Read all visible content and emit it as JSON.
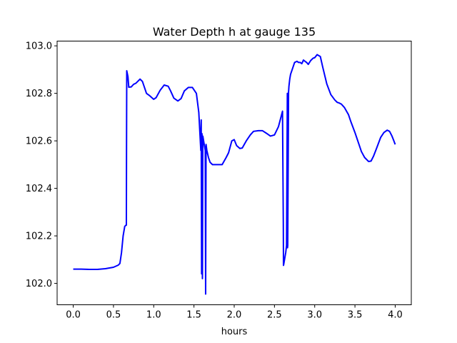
{
  "chart_data": {
    "type": "line",
    "title": "Water Depth h at gauge 135",
    "xlabel": "hours",
    "ylabel": "",
    "xlim": [
      -0.2,
      4.2
    ],
    "ylim": [
      101.91,
      103.02
    ],
    "x_ticks": [
      0.0,
      0.5,
      1.0,
      1.5,
      2.0,
      2.5,
      3.0,
      3.5,
      4.0
    ],
    "x_tick_labels": [
      "0.0",
      "0.5",
      "1.0",
      "1.5",
      "2.0",
      "2.5",
      "3.0",
      "3.5",
      "4.0"
    ],
    "y_ticks": [
      102.0,
      102.2,
      102.4,
      102.6,
      102.8,
      103.0
    ],
    "y_tick_labels": [
      "102.0",
      "102.2",
      "102.4",
      "102.6",
      "102.8",
      "103.0"
    ],
    "grid": false,
    "colors": {
      "line": "#0000ff"
    },
    "series": [
      {
        "x": [
          0.0,
          0.1,
          0.2,
          0.3,
          0.4,
          0.5,
          0.56,
          0.58,
          0.6,
          0.62,
          0.64,
          0.655,
          0.66,
          0.662,
          0.665,
          0.68,
          0.69,
          0.72,
          0.75,
          0.78,
          0.83,
          0.86,
          0.88,
          0.91,
          0.95,
          1.0,
          1.03,
          1.08,
          1.13,
          1.18,
          1.21,
          1.25,
          1.3,
          1.34,
          1.38,
          1.43,
          1.48,
          1.53,
          1.56,
          1.585,
          1.59,
          1.595,
          1.6,
          1.605,
          1.61,
          1.62,
          1.63,
          1.64,
          1.645,
          1.65,
          1.66,
          1.68,
          1.7,
          1.73,
          1.77,
          1.81,
          1.85,
          1.9,
          1.93,
          1.97,
          2.0,
          2.03,
          2.07,
          2.1,
          2.15,
          2.2,
          2.24,
          2.3,
          2.35,
          2.4,
          2.45,
          2.5,
          2.55,
          2.6,
          2.61,
          2.612,
          2.615,
          2.64,
          2.65,
          2.66,
          2.662,
          2.665,
          2.675,
          2.68,
          2.69,
          2.7,
          2.72,
          2.75,
          2.78,
          2.8,
          2.82,
          2.84,
          2.86,
          2.88,
          2.9,
          2.92,
          2.95,
          2.98,
          3.0,
          3.03,
          3.07,
          3.1,
          3.15,
          3.2,
          3.25,
          3.28,
          3.3,
          3.33,
          3.37,
          3.42,
          3.45,
          3.5,
          3.55,
          3.58,
          3.62,
          3.67,
          3.7,
          3.73,
          3.77,
          3.82,
          3.86,
          3.9,
          3.93,
          3.96,
          3.98,
          4.0
        ],
        "y": [
          102.06,
          102.06,
          102.059,
          102.059,
          102.062,
          102.068,
          102.077,
          102.084,
          102.13,
          102.2,
          102.24,
          102.245,
          102.245,
          102.55,
          102.895,
          102.87,
          102.826,
          102.827,
          102.838,
          102.843,
          102.86,
          102.85,
          102.83,
          102.8,
          102.79,
          102.775,
          102.782,
          102.813,
          102.835,
          102.83,
          102.81,
          102.78,
          102.768,
          102.778,
          102.81,
          102.825,
          102.825,
          102.8,
          102.72,
          102.56,
          102.688,
          102.04,
          102.63,
          102.02,
          102.62,
          102.6,
          102.58,
          102.56,
          101.955,
          102.585,
          102.56,
          102.53,
          102.51,
          102.5,
          102.5,
          102.5,
          102.5,
          102.53,
          102.55,
          102.6,
          102.605,
          102.58,
          102.568,
          102.57,
          102.6,
          102.625,
          102.64,
          102.643,
          102.643,
          102.632,
          102.62,
          102.625,
          102.66,
          102.725,
          102.25,
          102.076,
          102.08,
          102.13,
          102.16,
          102.8,
          102.15,
          102.16,
          102.805,
          102.83,
          102.86,
          102.88,
          102.9,
          102.93,
          102.935,
          102.93,
          102.93,
          102.925,
          102.94,
          102.935,
          102.93,
          102.922,
          102.938,
          102.948,
          102.95,
          102.963,
          102.955,
          102.91,
          102.84,
          102.795,
          102.772,
          102.762,
          102.76,
          102.755,
          102.74,
          102.71,
          102.68,
          102.635,
          102.585,
          102.555,
          102.53,
          102.513,
          102.515,
          102.535,
          102.57,
          102.615,
          102.635,
          102.645,
          102.64,
          102.62,
          102.603,
          102.585
        ]
      }
    ]
  }
}
